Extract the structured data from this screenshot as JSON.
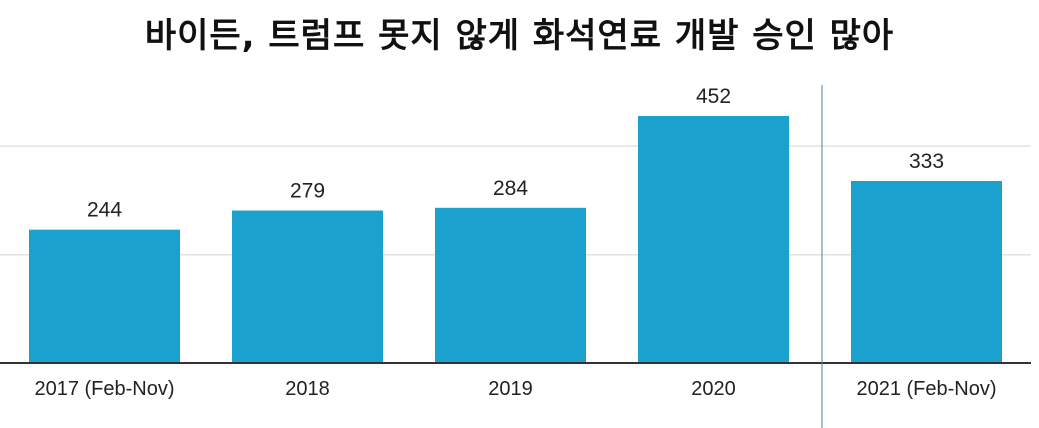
{
  "title": "바이든, 트럼프 못지 않게 화석연료 개발 승인 많아",
  "colors": {
    "bar": "#1ba1cd",
    "gridline": "#e2e2e2",
    "baseline": "#333333",
    "divider": "#4a7fa7"
  },
  "chart_data": {
    "type": "bar",
    "title": "바이든, 트럼프 못지 않게 화석연료 개발 승인 많아",
    "categories": [
      "2017 (Feb-Nov)",
      "2018",
      "2019",
      "2020",
      "2021 (Feb-Nov)"
    ],
    "values": [
      244,
      279,
      284,
      452,
      333
    ],
    "data_labels": [
      "244",
      "279",
      "284",
      "452",
      "333"
    ],
    "xlabel": "",
    "ylabel": "",
    "ylim": [
      0,
      470
    ],
    "grid": true,
    "legend": "none",
    "divider_before_category": "2021 (Feb-Nov)"
  }
}
